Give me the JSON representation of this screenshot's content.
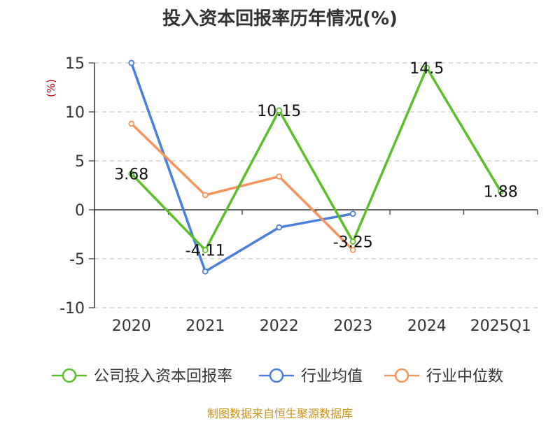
{
  "title": "投入资本回报率历年情况(%)",
  "source": "制图数据来自恒生聚源数据库",
  "chart_data": {
    "type": "line",
    "title": "投入资本回报率历年情况(%)",
    "ylabel": "(%)",
    "categories": [
      "2020",
      "2021",
      "2022",
      "2023",
      "2024",
      "2025Q1"
    ],
    "ylim": [
      -10,
      15
    ],
    "yticks": [
      15,
      10,
      5,
      0,
      -5,
      -10
    ],
    "grid": true,
    "legend_position": "bottom",
    "series": [
      {
        "name": "公司投入资本回报率",
        "color": "#5cbf2a",
        "values": [
          3.68,
          -4.11,
          10.15,
          -3.25,
          14.5,
          1.88
        ],
        "labels": [
          "3.68",
          "-4.11",
          "10.15",
          "-3.25",
          "14.5",
          "1.88"
        ]
      },
      {
        "name": "行业均值",
        "color": "#4a7fdc",
        "values": [
          15.0,
          -6.3,
          -1.8,
          -0.4,
          null,
          null
        ]
      },
      {
        "name": "行业中位数",
        "color": "#f5945c",
        "values": [
          8.8,
          1.5,
          3.4,
          -4.1,
          null,
          null
        ]
      }
    ]
  }
}
